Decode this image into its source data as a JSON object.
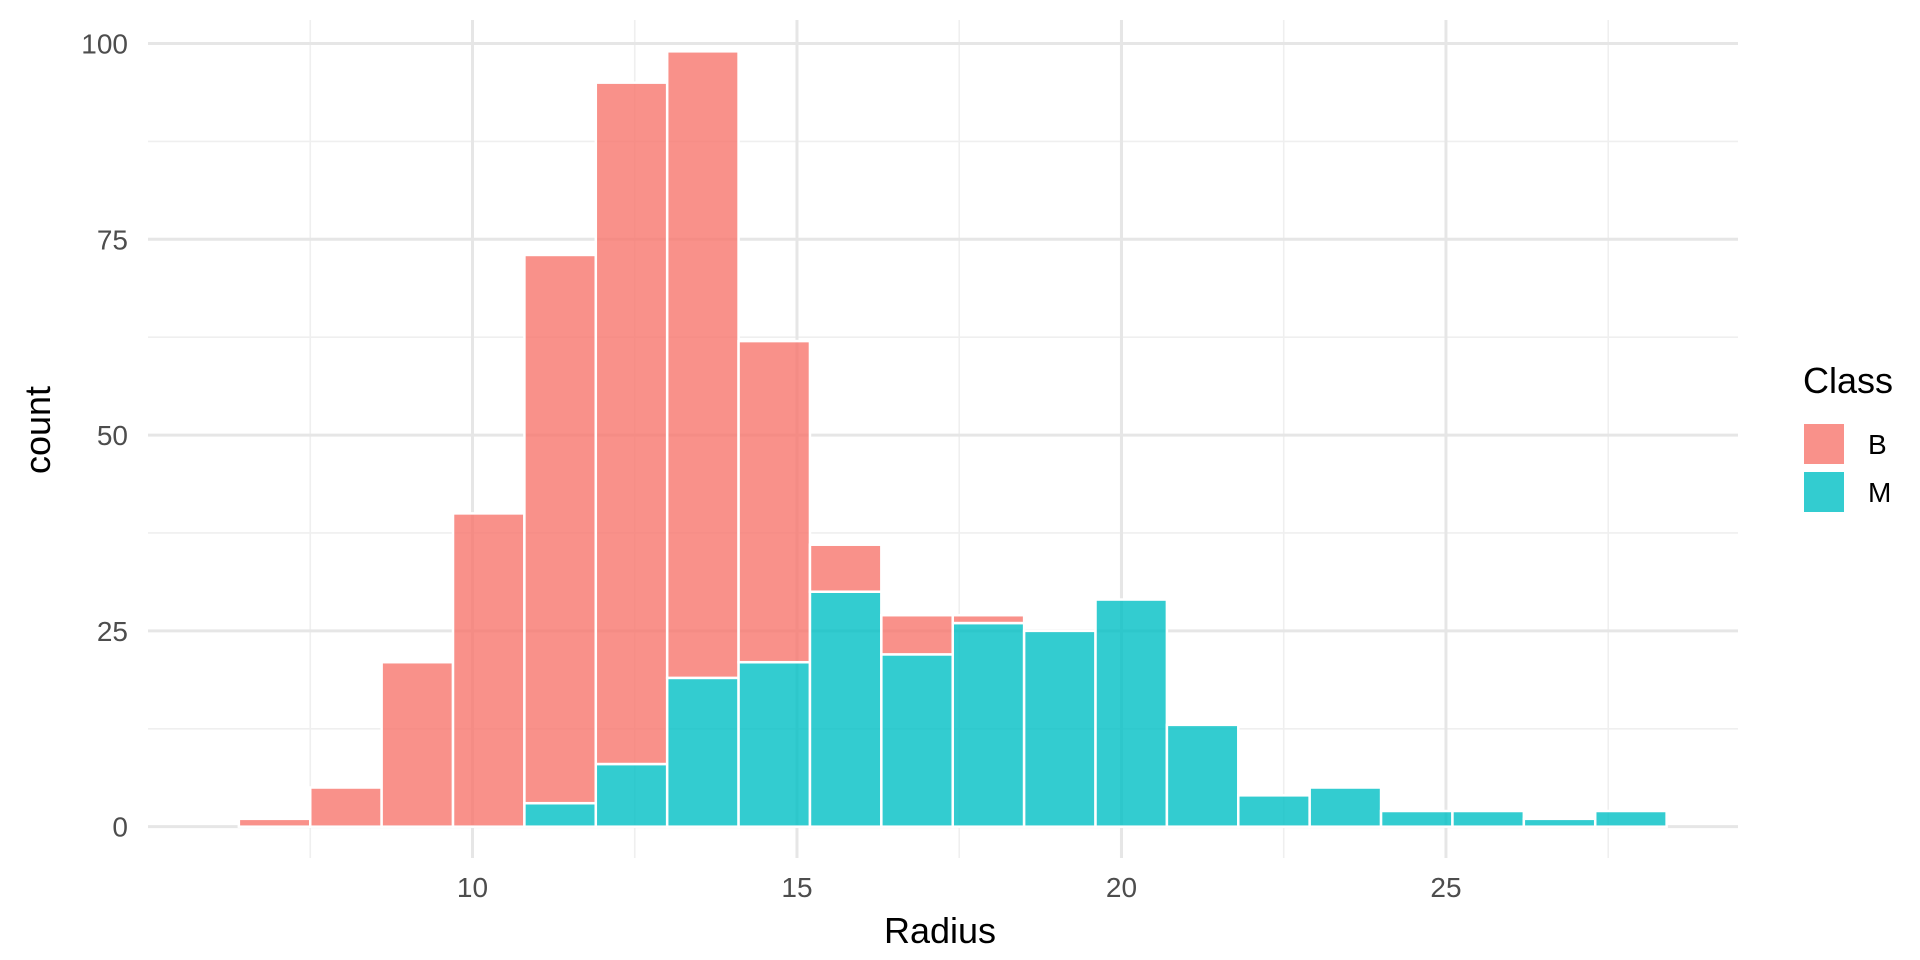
{
  "chart_data": {
    "type": "bar",
    "subtype": "stacked-histogram",
    "xlabel": "Radius",
    "ylabel": "count",
    "xlim": [
      5,
      29.5
    ],
    "ylim": [
      -4,
      103
    ],
    "x_ticks": [
      10,
      15,
      20,
      25
    ],
    "x_tick_labels": [
      "10",
      "15",
      "20",
      "25"
    ],
    "y_ticks": [
      0,
      25,
      50,
      75,
      100
    ],
    "y_tick_labels": [
      "0",
      "25",
      "50",
      "75",
      "100"
    ],
    "grid": true,
    "legend": {
      "title": "Class",
      "position": "right",
      "entries": [
        "B",
        "M"
      ]
    },
    "bins": [
      {
        "x0": 6.4,
        "x1": 7.5,
        "B": 1,
        "M": 0
      },
      {
        "x0": 7.5,
        "x1": 8.6,
        "B": 5,
        "M": 0
      },
      {
        "x0": 8.6,
        "x1": 9.7,
        "B": 21,
        "M": 0
      },
      {
        "x0": 9.7,
        "x1": 10.8,
        "B": 40,
        "M": 0
      },
      {
        "x0": 10.8,
        "x1": 11.9,
        "B": 70,
        "M": 3
      },
      {
        "x0": 11.9,
        "x1": 13.0,
        "B": 87,
        "M": 8
      },
      {
        "x0": 13.0,
        "x1": 14.1,
        "B": 80,
        "M": 19
      },
      {
        "x0": 14.1,
        "x1": 15.2,
        "B": 41,
        "M": 21
      },
      {
        "x0": 15.2,
        "x1": 16.3,
        "B": 6,
        "M": 30
      },
      {
        "x0": 16.3,
        "x1": 17.4,
        "B": 5,
        "M": 22
      },
      {
        "x0": 17.4,
        "x1": 18.5,
        "B": 1,
        "M": 26
      },
      {
        "x0": 18.5,
        "x1": 19.6,
        "B": 0,
        "M": 25
      },
      {
        "x0": 19.6,
        "x1": 20.7,
        "B": 0,
        "M": 29
      },
      {
        "x0": 20.7,
        "x1": 21.8,
        "B": 0,
        "M": 13
      },
      {
        "x0": 21.8,
        "x1": 22.9,
        "B": 0,
        "M": 4
      },
      {
        "x0": 22.9,
        "x1": 24.0,
        "B": 0,
        "M": 5
      },
      {
        "x0": 24.0,
        "x1": 25.1,
        "B": 0,
        "M": 2
      },
      {
        "x0": 25.1,
        "x1": 26.2,
        "B": 0,
        "M": 2
      },
      {
        "x0": 26.2,
        "x1": 27.3,
        "B": 0,
        "M": 1
      },
      {
        "x0": 27.3,
        "x1": 28.4,
        "B": 0,
        "M": 2
      }
    ],
    "series": [
      {
        "name": "B",
        "color": "#F8766D"
      },
      {
        "name": "M",
        "color": "#00BFC4"
      }
    ]
  }
}
